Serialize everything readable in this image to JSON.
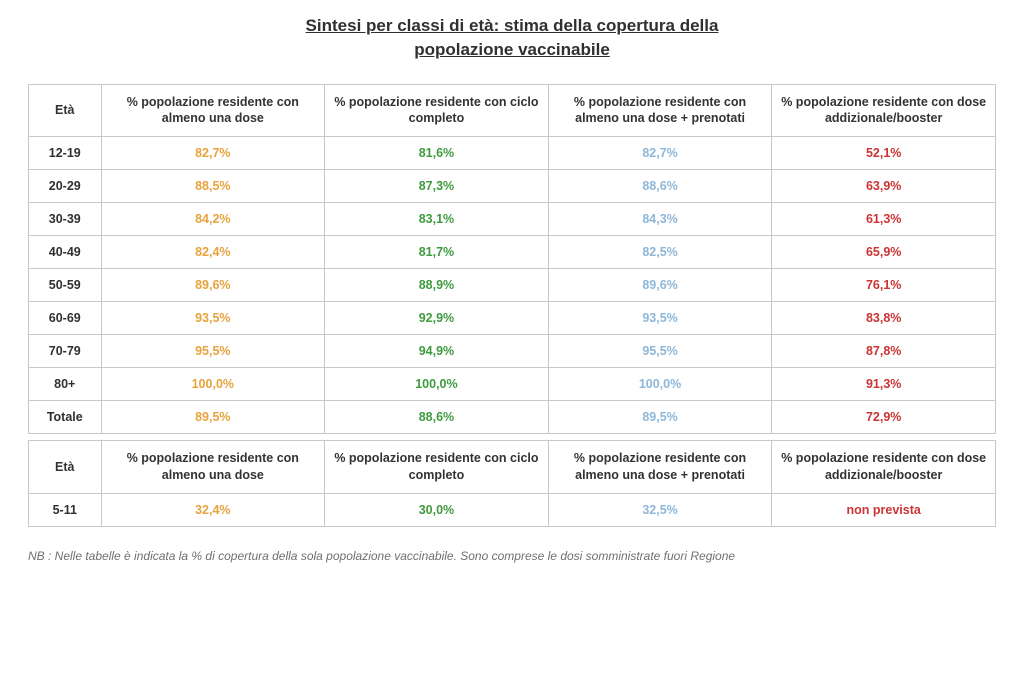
{
  "title_line1": "Sintesi per classi di età: stima della copertura della",
  "title_line2": "popolazione vaccinabile",
  "headers": {
    "age": "Età",
    "col1": "% popolazione residente con almeno una dose",
    "col2": "% popolazione residente con ciclo completo",
    "col3": "% popolazione residente con almeno una dose + prenotati",
    "col4": "% popolazione residente con dose addizionale/booster"
  },
  "colors": {
    "col1": "#e8a33d",
    "col2": "#3f9b3f",
    "col3": "#8fb7d8",
    "col4": "#cc3333",
    "header_text": "#333333",
    "row_label": "#303030",
    "border": "#c8c8c8",
    "background": "#ffffff",
    "footnote": "#707070"
  },
  "font": {
    "title_size_pt": 13,
    "cell_size_pt": 9.5,
    "footnote_size_pt": 9,
    "family": "Verdana/Tahoma sans-serif",
    "weight_data": "bold",
    "weight_header": "bold"
  },
  "layout": {
    "col_widths_pct": [
      7.5,
      23.125,
      23.125,
      23.125,
      23.125
    ],
    "alignment": "center"
  },
  "type": "table",
  "main_rows": [
    {
      "age": "12-19",
      "c1": "82,7%",
      "c2": "81,6%",
      "c3": "82,7%",
      "c4": "52,1%"
    },
    {
      "age": "20-29",
      "c1": "88,5%",
      "c2": "87,3%",
      "c3": "88,6%",
      "c4": "63,9%"
    },
    {
      "age": "30-39",
      "c1": "84,2%",
      "c2": "83,1%",
      "c3": "84,3%",
      "c4": "61,3%"
    },
    {
      "age": "40-49",
      "c1": "82,4%",
      "c2": "81,7%",
      "c3": "82,5%",
      "c4": "65,9%"
    },
    {
      "age": "50-59",
      "c1": "89,6%",
      "c2": "88,9%",
      "c3": "89,6%",
      "c4": "76,1%"
    },
    {
      "age": "60-69",
      "c1": "93,5%",
      "c2": "92,9%",
      "c3": "93,5%",
      "c4": "83,8%"
    },
    {
      "age": "70-79",
      "c1": "95,5%",
      "c2": "94,9%",
      "c3": "95,5%",
      "c4": "87,8%"
    },
    {
      "age": "80+",
      "c1": "100,0%",
      "c2": "100,0%",
      "c3": "100,0%",
      "c4": "91,3%"
    },
    {
      "age": "Totale",
      "c1": "89,5%",
      "c2": "88,6%",
      "c3": "89,5%",
      "c4": "72,9%"
    }
  ],
  "sub_rows": [
    {
      "age": "5-11",
      "c1": "32,4%",
      "c2": "30,0%",
      "c3": "32,5%",
      "c4": "non prevista"
    }
  ],
  "footnote": "NB : Nelle tabelle è indicata la % di copertura della sola popolazione vaccinabile. Sono comprese le dosi somministrate fuori Regione"
}
